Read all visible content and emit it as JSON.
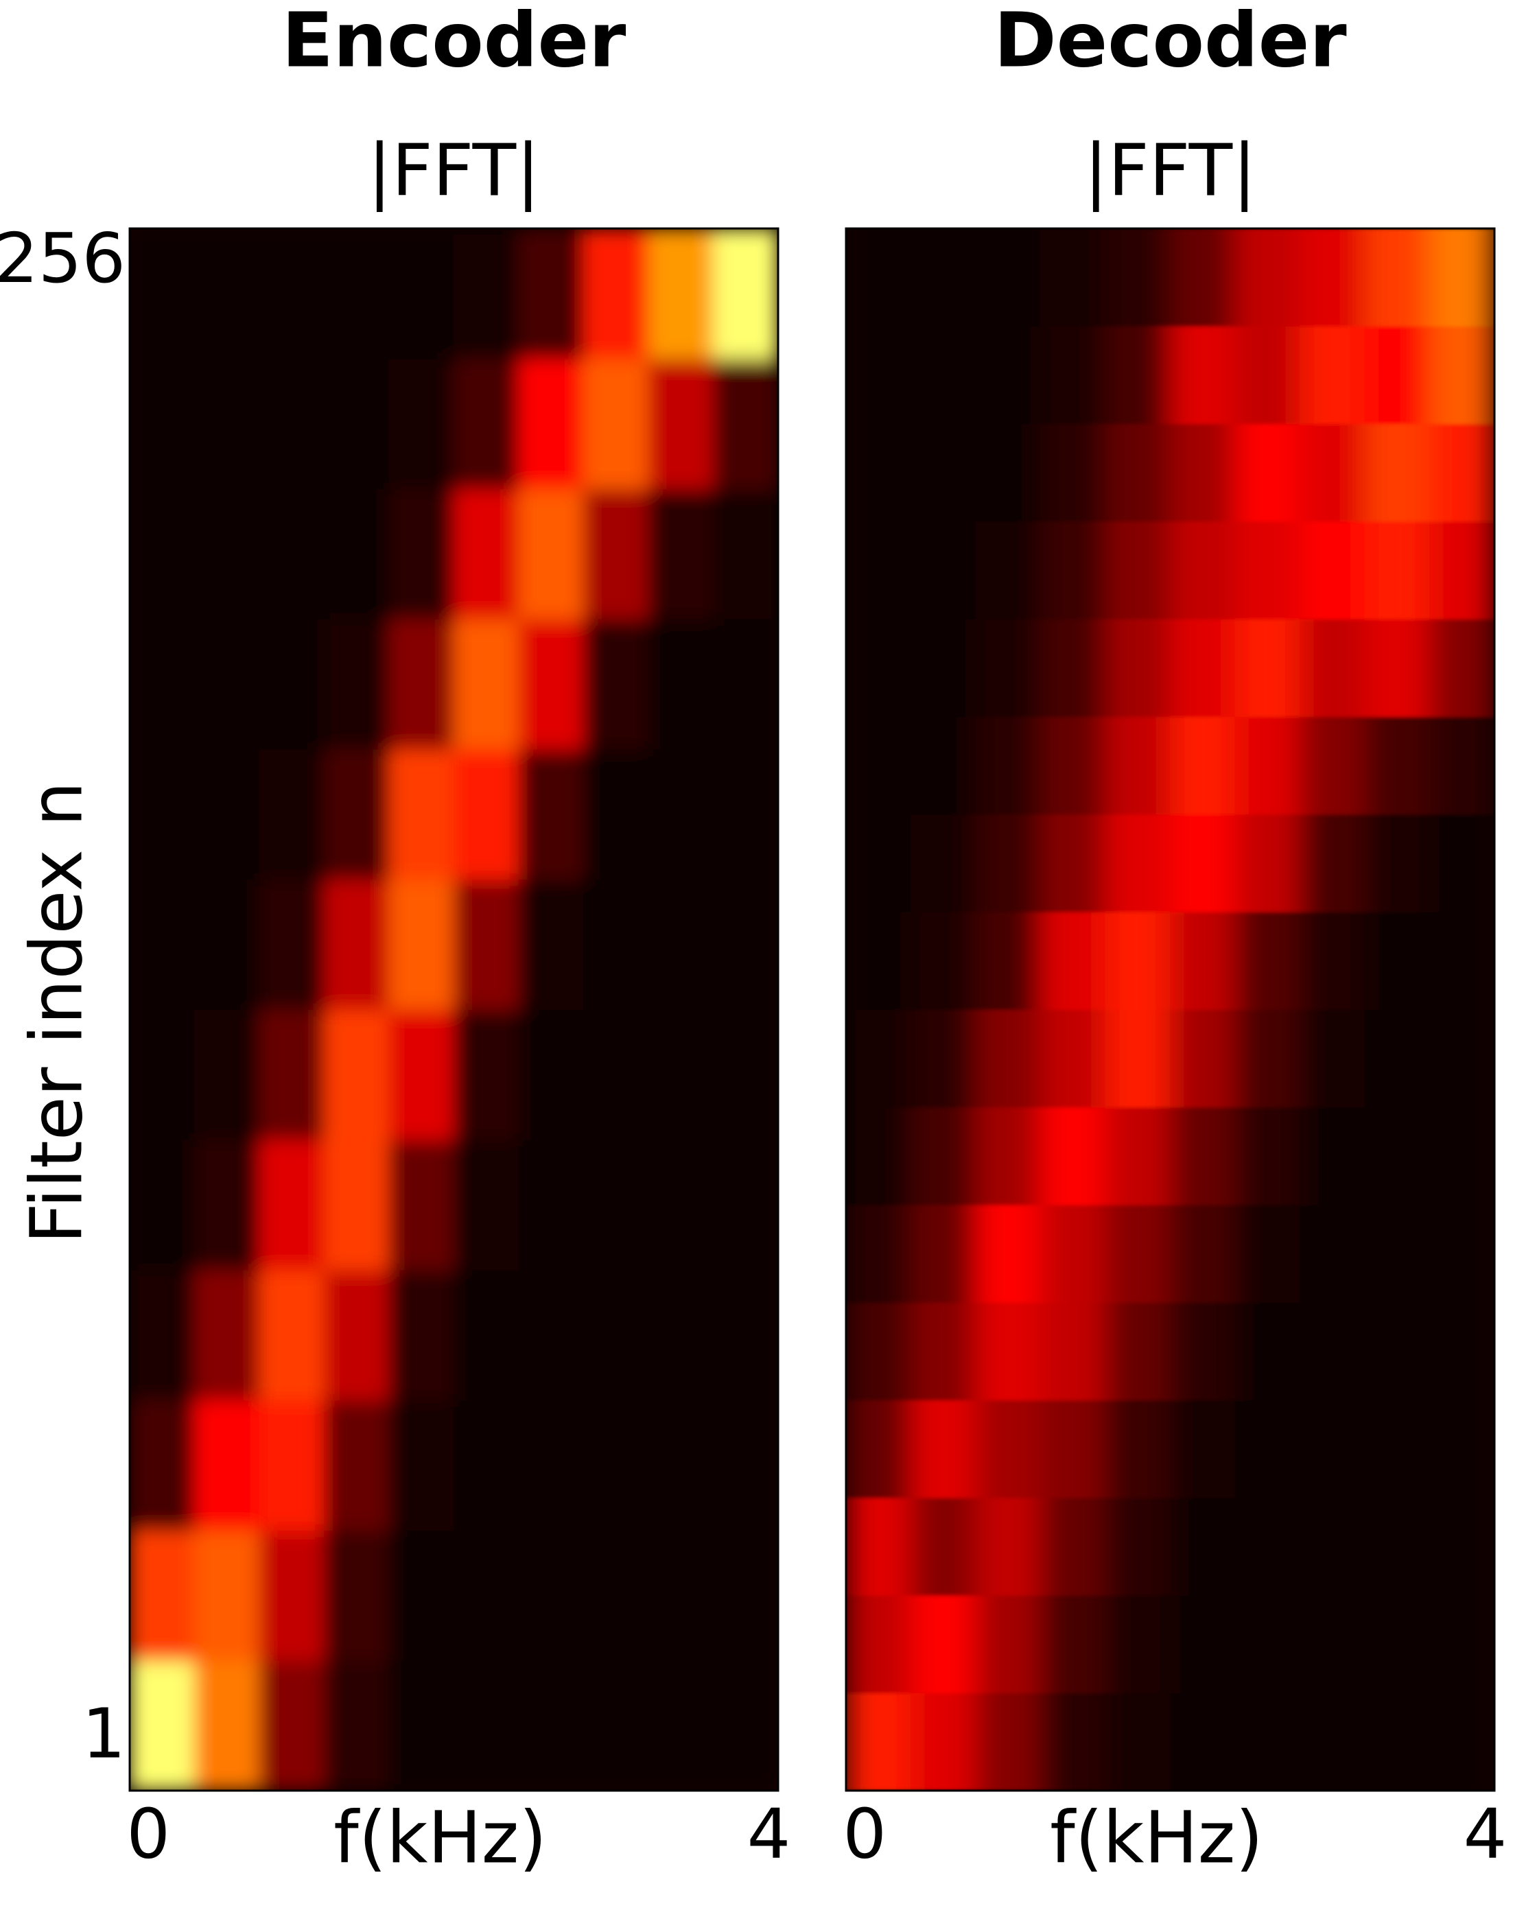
{
  "chart_data": [
    {
      "type": "heatmap",
      "title": "Encoder",
      "subtitle": "|FFT|",
      "x_label": "f(kHz)",
      "y_label": "Filter index n",
      "xlim": [
        -0.12,
        4.06
      ],
      "xticks": [
        0,
        4
      ],
      "ylim": [
        -8,
        262
      ],
      "yticks": [
        1,
        256
      ],
      "blur": [
        14,
        14
      ],
      "z": [
        [
          1,
          0.6,
          0.2,
          0.05,
          0,
          0,
          0,
          0,
          0,
          0
        ],
        [
          0.5,
          0.55,
          0.3,
          0.08,
          0,
          0,
          0,
          0,
          0,
          0
        ],
        [
          0.1,
          0.4,
          0.45,
          0.15,
          0.02,
          0,
          0,
          0,
          0,
          0
        ],
        [
          0.03,
          0.2,
          0.5,
          0.3,
          0.05,
          0,
          0,
          0,
          0,
          0
        ],
        [
          0,
          0.05,
          0.35,
          0.5,
          0.15,
          0.02,
          0,
          0,
          0,
          0
        ],
        [
          0,
          0.02,
          0.15,
          0.5,
          0.35,
          0.05,
          0,
          0,
          0,
          0
        ],
        [
          0,
          0,
          0.05,
          0.3,
          0.55,
          0.2,
          0.02,
          0,
          0,
          0
        ],
        [
          0,
          0,
          0.02,
          0.1,
          0.5,
          0.45,
          0.1,
          0,
          0,
          0
        ],
        [
          0,
          0,
          0,
          0.03,
          0.2,
          0.55,
          0.35,
          0.05,
          0,
          0
        ],
        [
          0,
          0,
          0,
          0.01,
          0.05,
          0.35,
          0.55,
          0.25,
          0.05,
          0.02
        ],
        [
          0,
          0,
          0,
          0,
          0.02,
          0.1,
          0.4,
          0.55,
          0.3,
          0.1
        ],
        [
          0,
          0,
          0,
          0,
          0,
          0.02,
          0.1,
          0.45,
          0.65,
          1
        ]
      ]
    },
    {
      "type": "heatmap",
      "title": "Decoder",
      "subtitle": "|FFT|",
      "x_label": "f(kHz)",
      "xlim": [
        -0.12,
        4.06
      ],
      "xticks": [
        0,
        4
      ],
      "ylim": [
        -8,
        262
      ],
      "blur": [
        22,
        3
      ],
      "z": [
        [
          0.45,
          0.35,
          0.2,
          0.05,
          0.02,
          0,
          0,
          0,
          0,
          0
        ],
        [
          0.3,
          0.4,
          0.25,
          0.1,
          0.03,
          0,
          0,
          0,
          0,
          0
        ],
        [
          0.35,
          0.2,
          0.3,
          0.15,
          0.05,
          0.01,
          0,
          0,
          0,
          0
        ],
        [
          0.15,
          0.35,
          0.25,
          0.2,
          0.08,
          0.02,
          0,
          0,
          0,
          0
        ],
        [
          0.1,
          0.2,
          0.35,
          0.3,
          0.15,
          0.05,
          0.01,
          0,
          0,
          0
        ],
        [
          0.05,
          0.15,
          0.4,
          0.3,
          0.2,
          0.1,
          0.02,
          0,
          0,
          0
        ],
        [
          0.02,
          0.1,
          0.25,
          0.4,
          0.3,
          0.15,
          0.05,
          0.01,
          0,
          0
        ],
        [
          0.02,
          0.05,
          0.2,
          0.3,
          0.45,
          0.25,
          0.1,
          0.02,
          0,
          0
        ],
        [
          0.01,
          0.03,
          0.1,
          0.35,
          0.45,
          0.3,
          0.12,
          0.04,
          0.01,
          0
        ],
        [
          0,
          0.02,
          0.08,
          0.2,
          0.35,
          0.4,
          0.3,
          0.1,
          0.03,
          0.01
        ],
        [
          0,
          0.01,
          0.05,
          0.15,
          0.3,
          0.45,
          0.35,
          0.2,
          0.1,
          0.05
        ],
        [
          0,
          0,
          0.03,
          0.1,
          0.25,
          0.35,
          0.45,
          0.3,
          0.35,
          0.2
        ],
        [
          0,
          0,
          0.02,
          0.08,
          0.2,
          0.3,
          0.35,
          0.4,
          0.45,
          0.35
        ],
        [
          0,
          0,
          0.01,
          0.05,
          0.15,
          0.25,
          0.4,
          0.35,
          0.5,
          0.45
        ],
        [
          0,
          0,
          0,
          0.03,
          0.1,
          0.35,
          0.3,
          0.45,
          0.4,
          0.55
        ],
        [
          0,
          0,
          0,
          0.02,
          0.05,
          0.15,
          0.3,
          0.35,
          0.5,
          0.6
        ]
      ]
    }
  ]
}
